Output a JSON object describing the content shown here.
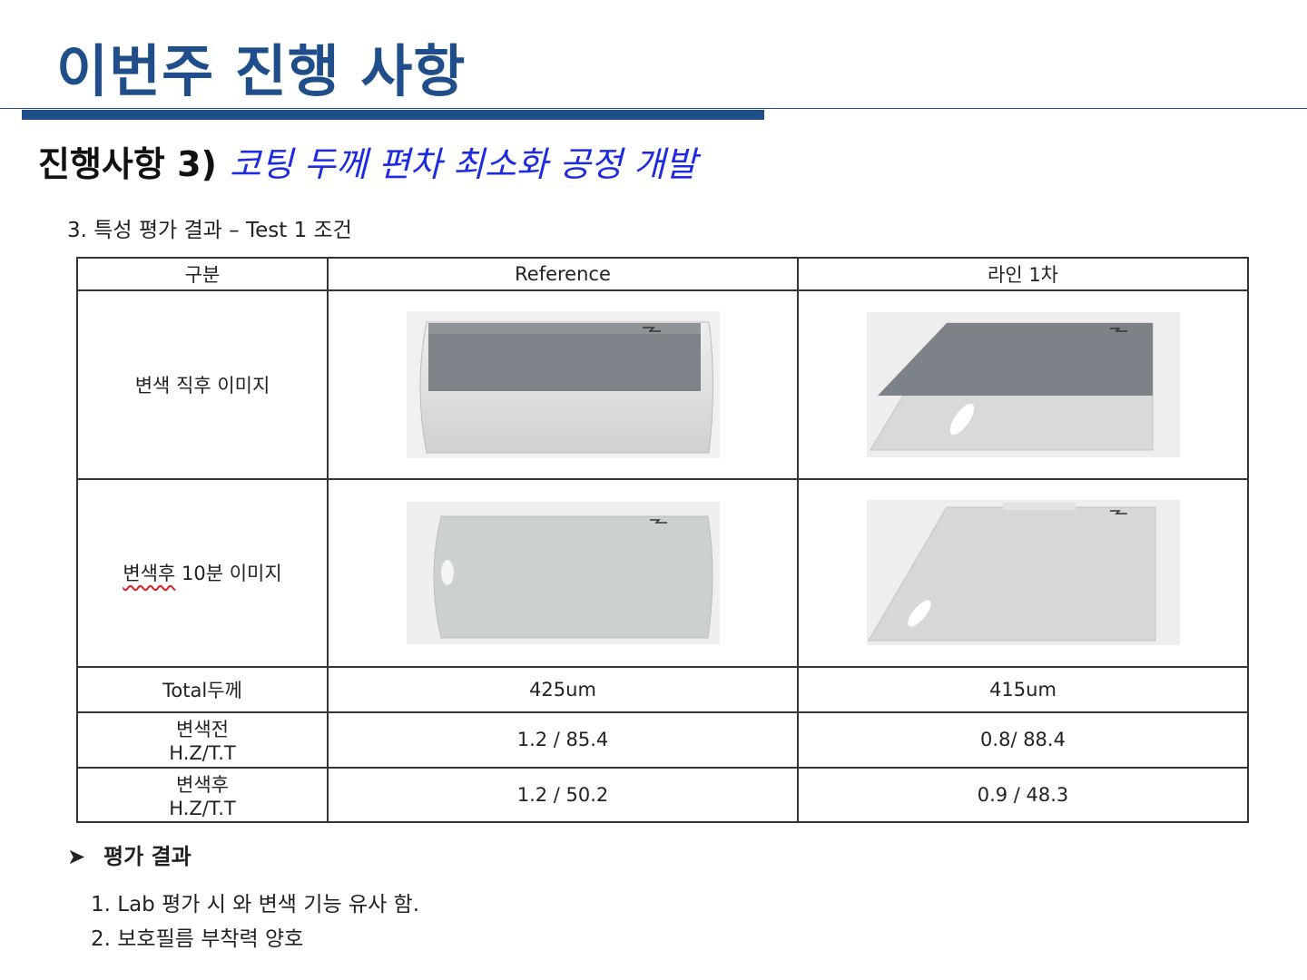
{
  "page": {
    "title": "이번주 진행 사항",
    "subtitle_lead": "진행사항 3)",
    "subtitle_topic": "코팅 두께 편차 최소화 공정 개발",
    "section_label": "3. 특성 평가 결과 – Test 1 조건"
  },
  "table": {
    "headers": {
      "category": "구분",
      "reference": "Reference",
      "line1": "라인 1차"
    },
    "rows": {
      "img_after": {
        "label": "변색 직후 이미지"
      },
      "img_10min": {
        "label_a": "변색후",
        "label_b": " 10분 이미지"
      },
      "total_thickness": {
        "label": "Total두께",
        "reference": "425um",
        "line1": "415um"
      },
      "before": {
        "label_1": "변색전",
        "label_2": "H.Z/T.T",
        "reference": "1.2 / 85.4",
        "line1": "0.8/ 88.4"
      },
      "after": {
        "label_1": "변색후",
        "label_2": "H.Z/T.T",
        "reference": "1.2 / 50.2",
        "line1": "0.9 / 48.3"
      }
    }
  },
  "evaluation": {
    "bullet_icon": "arrowhead-bullet-icon",
    "header": "평가 결과",
    "items": [
      "1. Lab 평가 시 와 변색 기능 유사 함.",
      "2. 보호필름 부착력 양호"
    ]
  },
  "colors": {
    "title_blue": "#1f4e8a",
    "topic_blue": "#1d2be0"
  }
}
